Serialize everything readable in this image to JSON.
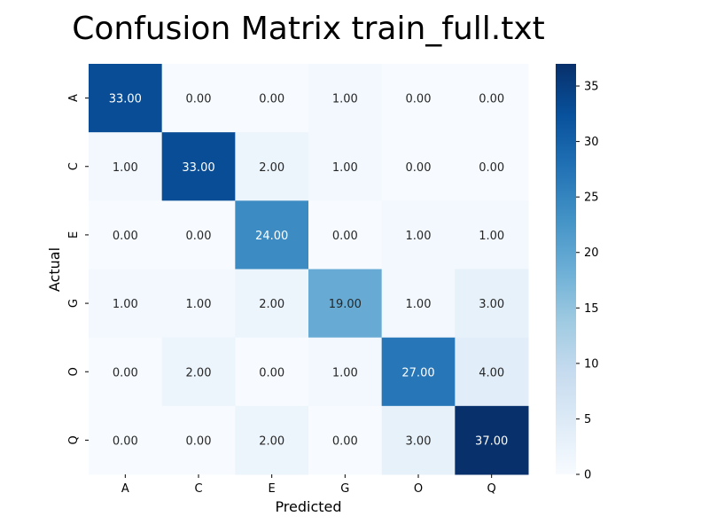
{
  "chart_data": {
    "type": "heatmap",
    "title": "Confusion Matrix train_full.txt",
    "xlabel": "Predicted",
    "ylabel": "Actual",
    "x_categories": [
      "A",
      "C",
      "E",
      "G",
      "O",
      "Q"
    ],
    "y_categories": [
      "A",
      "C",
      "E",
      "G",
      "O",
      "Q"
    ],
    "values": [
      [
        33,
        0,
        0,
        1,
        0,
        0
      ],
      [
        1,
        33,
        2,
        1,
        0,
        0
      ],
      [
        0,
        0,
        24,
        0,
        1,
        1
      ],
      [
        1,
        1,
        2,
        19,
        1,
        3
      ],
      [
        0,
        2,
        0,
        1,
        27,
        4
      ],
      [
        0,
        0,
        2,
        0,
        3,
        37
      ]
    ],
    "cell_labels": [
      [
        "33.00",
        "0.00",
        "0.00",
        "1.00",
        "0.00",
        "0.00"
      ],
      [
        "1.00",
        "33.00",
        "2.00",
        "1.00",
        "0.00",
        "0.00"
      ],
      [
        "0.00",
        "0.00",
        "24.00",
        "0.00",
        "1.00",
        "1.00"
      ],
      [
        "1.00",
        "1.00",
        "2.00",
        "19.00",
        "1.00",
        "3.00"
      ],
      [
        "0.00",
        "2.00",
        "0.00",
        "1.00",
        "27.00",
        "4.00"
      ],
      [
        "0.00",
        "0.00",
        "2.00",
        "0.00",
        "3.00",
        "37.00"
      ]
    ],
    "colorbar": {
      "min": 0,
      "max": 37,
      "ticks": [
        "0",
        "5",
        "10",
        "15",
        "20",
        "25",
        "30",
        "35"
      ],
      "colormap": "Blues"
    }
  }
}
